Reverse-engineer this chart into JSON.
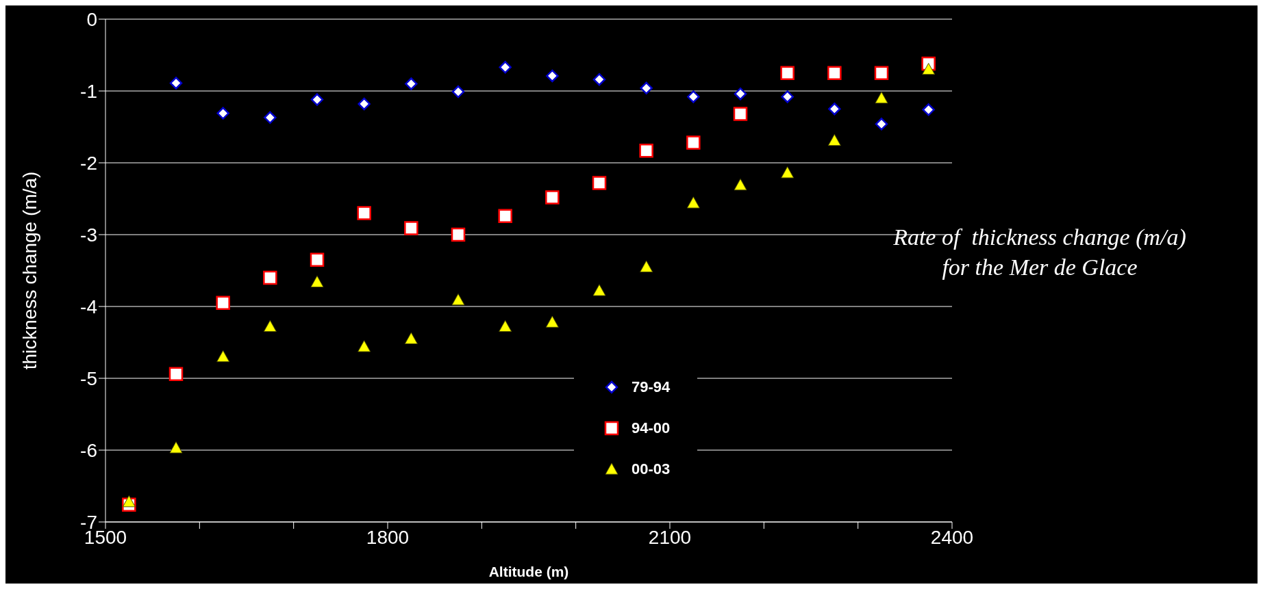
{
  "chart_data": {
    "type": "scatter",
    "xlabel": "Altitude (m)",
    "ylabel": "thickness change (m/a)",
    "x": [
      1525,
      1575,
      1625,
      1675,
      1725,
      1775,
      1825,
      1875,
      1925,
      1975,
      2025,
      2075,
      2125,
      2175,
      2225,
      2275,
      2325,
      2375
    ],
    "series": [
      {
        "name": "79-94",
        "color": "#0000cc",
        "marker": "diamond",
        "values": [
          null,
          -0.89,
          -1.31,
          -1.37,
          -1.12,
          -1.18,
          -0.9,
          -1.01,
          -0.67,
          -0.79,
          -0.84,
          -0.96,
          -1.08,
          -1.04,
          -1.08,
          -1.25,
          -1.46,
          -1.26
        ]
      },
      {
        "name": "94-00",
        "color": "#ff0000",
        "marker": "square",
        "values": [
          -6.76,
          -4.94,
          -3.95,
          -3.6,
          -3.35,
          -2.7,
          -2.91,
          -3.0,
          -2.74,
          -2.48,
          -2.28,
          -1.83,
          -1.72,
          -1.32,
          -0.75,
          -0.75,
          -0.75,
          -0.62
        ]
      },
      {
        "name": "00-03",
        "color": "#ffff00",
        "marker": "triangle",
        "values": [
          -6.72,
          -5.97,
          -4.7,
          -4.28,
          -3.66,
          -4.56,
          -4.45,
          -3.91,
          -4.28,
          -4.22,
          -3.78,
          -3.45,
          -2.56,
          -2.31,
          -2.14,
          -1.69,
          -1.1,
          -0.7
        ]
      }
    ],
    "xlim": [
      1500,
      2400
    ],
    "xticks": [
      1500,
      {
        "value": 1600,
        "label": null
      },
      {
        "value": 1700,
        "label": null
      },
      1800,
      {
        "value": 1900,
        "label": null
      },
      {
        "value": 2000,
        "label": null
      },
      2100,
      {
        "value": 2200,
        "label": null
      },
      {
        "value": 2300,
        "label": null
      },
      2400
    ],
    "ylim": [
      -7,
      0
    ],
    "yticks": [
      -7,
      -6,
      -5,
      -4,
      -3,
      -2,
      -1,
      0
    ],
    "grid": "y",
    "legend": "bottom",
    "annotations": [
      "Rate of  thickness change (m/a)",
      "for the Mer de Glace"
    ]
  }
}
